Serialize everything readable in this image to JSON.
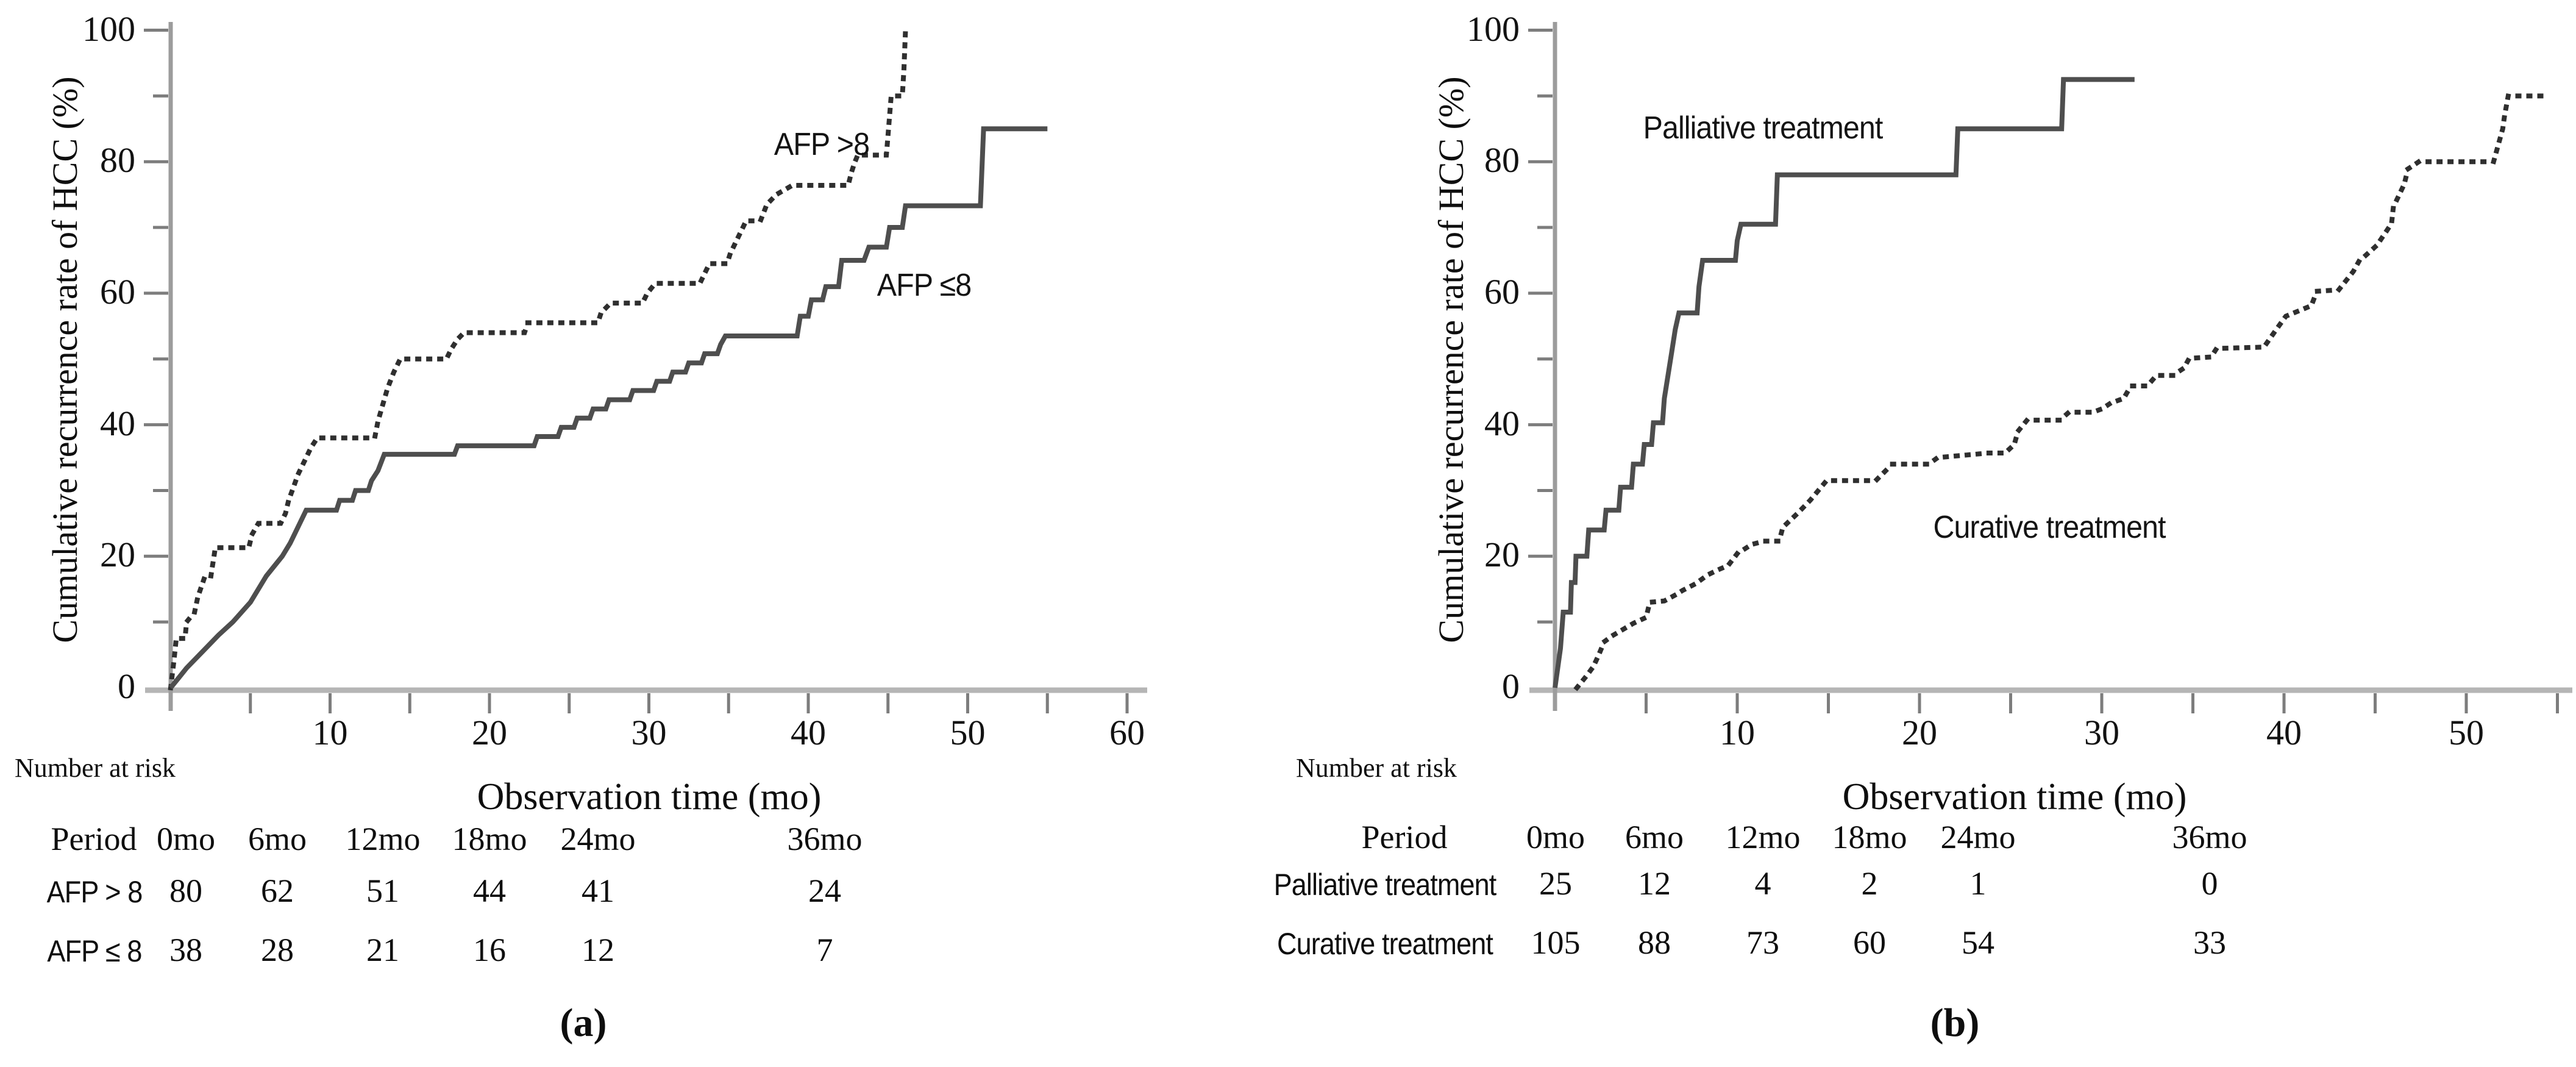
{
  "figure_type": "kaplan-meier cumulative recurrence curves, two panels",
  "chart_data": [
    {
      "type": "line",
      "subtype": "step",
      "panel": "a",
      "caption": "(a)",
      "xlabel": "Observation time (mo)",
      "ylabel": "Cumulative recurrence rate of HCC (%)",
      "xlim": [
        0,
        61
      ],
      "ylim": [
        0,
        100
      ],
      "x_major_ticks": [
        10,
        20,
        30,
        40,
        50,
        60
      ],
      "x_minor_tick_every": 5,
      "y_major_ticks": [
        0,
        20,
        40,
        60,
        80,
        100
      ],
      "y_minor_tick_every": 10,
      "grid": false,
      "legend_position": "labels drawn inside plot",
      "series": [
        {
          "name": "AFP >8",
          "style": "dotted",
          "color": "#2f2f2f",
          "points": [
            [
              0,
              0
            ],
            [
              0.2,
              4
            ],
            [
              0.35,
              7.5
            ],
            [
              0.9,
              7.5
            ],
            [
              1.0,
              10
            ],
            [
              1.5,
              11.5
            ],
            [
              1.7,
              13.8
            ],
            [
              1.9,
              15.2
            ],
            [
              2.1,
              16.6
            ],
            [
              2.5,
              16.6
            ],
            [
              2.6,
              18.2
            ],
            [
              2.7,
              19.7
            ],
            [
              2.8,
              21.3
            ],
            [
              4.9,
              21.3
            ],
            [
              5.1,
              23.3
            ],
            [
              5.5,
              25
            ],
            [
              6.9,
              25
            ],
            [
              7.2,
              26.5
            ],
            [
              7.4,
              28.5
            ],
            [
              7.7,
              30.5
            ],
            [
              8.0,
              32.5
            ],
            [
              8.4,
              34.5
            ],
            [
              8.8,
              36.5
            ],
            [
              9.2,
              38
            ],
            [
              12.8,
              38
            ],
            [
              13.0,
              40.5
            ],
            [
              13.3,
              43
            ],
            [
              13.6,
              45.5
            ],
            [
              14.0,
              48
            ],
            [
              14.4,
              50
            ],
            [
              17.3,
              50
            ],
            [
              17.6,
              51.5
            ],
            [
              18.0,
              53
            ],
            [
              18.4,
              54
            ],
            [
              22.2,
              54
            ],
            [
              22.4,
              55.5
            ],
            [
              26.8,
              55.5
            ],
            [
              27.0,
              57
            ],
            [
              27.6,
              58.5
            ],
            [
              29.6,
              58.5
            ],
            [
              29.9,
              60
            ],
            [
              30.4,
              61.5
            ],
            [
              33.2,
              61.5
            ],
            [
              33.5,
              63
            ],
            [
              33.8,
              64.5
            ],
            [
              34.9,
              64.5
            ],
            [
              35.1,
              66
            ],
            [
              35.5,
              68
            ],
            [
              35.9,
              70
            ],
            [
              36.1,
              71
            ],
            [
              37.0,
              71
            ],
            [
              37.4,
              73.5
            ],
            [
              38.0,
              75
            ],
            [
              39.0,
              76.4
            ],
            [
              42.5,
              76.4
            ],
            [
              42.7,
              78.3
            ],
            [
              42.9,
              79.8
            ],
            [
              43.1,
              81
            ],
            [
              44.9,
              81
            ],
            [
              45.0,
              84
            ],
            [
              45.1,
              87
            ],
            [
              45.2,
              90
            ],
            [
              45.9,
              90
            ],
            [
              46.0,
              94
            ],
            [
              46.05,
              97
            ],
            [
              46.1,
              100
            ]
          ]
        },
        {
          "name": "AFP ≤8",
          "style": "solid",
          "color": "#4e4e4e",
          "points": [
            [
              0,
              0
            ],
            [
              0.5,
              1.5
            ],
            [
              1,
              3
            ],
            [
              2,
              5.5
            ],
            [
              3,
              8
            ],
            [
              3.9,
              10
            ],
            [
              5,
              13
            ],
            [
              6,
              17
            ],
            [
              7,
              20
            ],
            [
              7.5,
              22
            ],
            [
              8,
              24.5
            ],
            [
              8.5,
              27
            ],
            [
              10.4,
              27
            ],
            [
              10.6,
              28.5
            ],
            [
              11.4,
              28.5
            ],
            [
              11.6,
              30
            ],
            [
              12.4,
              30
            ],
            [
              12.6,
              31.5
            ],
            [
              13.0,
              33
            ],
            [
              13.4,
              35.5
            ],
            [
              17.8,
              35.5
            ],
            [
              18.0,
              36.8
            ],
            [
              22.8,
              36.8
            ],
            [
              23.0,
              38.2
            ],
            [
              24.3,
              38.2
            ],
            [
              24.5,
              39.6
            ],
            [
              25.3,
              39.6
            ],
            [
              25.5,
              41
            ],
            [
              26.3,
              41
            ],
            [
              26.5,
              42.4
            ],
            [
              27.3,
              42.4
            ],
            [
              27.5,
              43.8
            ],
            [
              28.8,
              43.8
            ],
            [
              29.0,
              45.2
            ],
            [
              30.3,
              45.2
            ],
            [
              30.5,
              46.6
            ],
            [
              31.3,
              46.6
            ],
            [
              31.5,
              48
            ],
            [
              32.3,
              48
            ],
            [
              32.5,
              49.4
            ],
            [
              33.3,
              49.4
            ],
            [
              33.5,
              50.8
            ],
            [
              34.3,
              50.8
            ],
            [
              34.5,
              52.2
            ],
            [
              34.8,
              53.5
            ],
            [
              39.3,
              53.5
            ],
            [
              39.5,
              56.5
            ],
            [
              40.0,
              56.5
            ],
            [
              40.2,
              59
            ],
            [
              40.9,
              59
            ],
            [
              41.1,
              61
            ],
            [
              41.9,
              61
            ],
            [
              42.1,
              65
            ],
            [
              43.5,
              65
            ],
            [
              43.8,
              67
            ],
            [
              44.9,
              67
            ],
            [
              45.1,
              70
            ],
            [
              45.9,
              70
            ],
            [
              46.1,
              73.3
            ],
            [
              50.8,
              73.3
            ],
            [
              51.0,
              85
            ],
            [
              55,
              85
            ]
          ]
        }
      ],
      "risk_table": {
        "title": "Number at risk",
        "header": [
          "Period",
          "0mo",
          "6mo",
          "12mo",
          "18mo",
          "24mo",
          "36mo"
        ],
        "rows": [
          {
            "label": "AFP > 8",
            "values": [
              "80",
              "62",
              "51",
              "44",
              "41",
              "24"
            ]
          },
          {
            "label": "AFP ≤ 8",
            "values": [
              "38",
              "28",
              "21",
              "16",
              "12",
              "7"
            ]
          }
        ]
      }
    },
    {
      "type": "line",
      "subtype": "step",
      "panel": "b",
      "caption": "(b)",
      "xlabel": "Observation time (mo)",
      "ylabel": "Cumulative recurrence rate of HCC (%)",
      "xlim": [
        0,
        56
      ],
      "ylim": [
        0,
        100
      ],
      "x_major_ticks": [
        10,
        20,
        30,
        40,
        50
      ],
      "x_minor_tick_every": 5,
      "y_major_ticks": [
        0,
        20,
        40,
        60,
        80,
        100
      ],
      "y_minor_tick_every": 10,
      "grid": false,
      "legend_position": "labels drawn inside plot",
      "series": [
        {
          "name": "Palliative treatment",
          "style": "solid",
          "color": "#4e4e4e",
          "points": [
            [
              0,
              0
            ],
            [
              0.3,
              6
            ],
            [
              0.45,
              11.5
            ],
            [
              0.85,
              11.5
            ],
            [
              0.9,
              16
            ],
            [
              1.1,
              16
            ],
            [
              1.15,
              20
            ],
            [
              1.75,
              20
            ],
            [
              1.85,
              24
            ],
            [
              2.7,
              24
            ],
            [
              2.8,
              27
            ],
            [
              3.5,
              27
            ],
            [
              3.6,
              30.5
            ],
            [
              4.2,
              30.5
            ],
            [
              4.3,
              34
            ],
            [
              4.8,
              34
            ],
            [
              4.9,
              37
            ],
            [
              5.3,
              37
            ],
            [
              5.4,
              40.3
            ],
            [
              5.9,
              40.3
            ],
            [
              6.0,
              44
            ],
            [
              6.2,
              47.5
            ],
            [
              6.4,
              51
            ],
            [
              6.6,
              54.5
            ],
            [
              6.8,
              57
            ],
            [
              7.8,
              57
            ],
            [
              7.9,
              61
            ],
            [
              8.1,
              65
            ],
            [
              9.9,
              65
            ],
            [
              10.0,
              68
            ],
            [
              10.2,
              70.5
            ],
            [
              12.1,
              70.5
            ],
            [
              12.2,
              78
            ],
            [
              22.0,
              78
            ],
            [
              22.1,
              85
            ],
            [
              27.8,
              85
            ],
            [
              27.9,
              92.5
            ],
            [
              31.8,
              92.5
            ]
          ]
        },
        {
          "name": "Curative treatment",
          "style": "dotted",
          "color": "#2f2f2f",
          "points": [
            [
              1.2,
              0
            ],
            [
              1.7,
              1.7
            ],
            [
              2.1,
              3.2
            ],
            [
              2.4,
              5
            ],
            [
              2.7,
              7
            ],
            [
              3.2,
              8
            ],
            [
              4.3,
              9.8
            ],
            [
              5.0,
              10.7
            ],
            [
              5.2,
              13
            ],
            [
              6.0,
              13.2
            ],
            [
              6.6,
              14.1
            ],
            [
              7.0,
              14.8
            ],
            [
              7.7,
              15.8
            ],
            [
              8.4,
              17.2
            ],
            [
              9.0,
              18
            ],
            [
              9.5,
              18.6
            ],
            [
              10.0,
              20.4
            ],
            [
              10.8,
              21.8
            ],
            [
              11.5,
              22.3
            ],
            [
              12.3,
              22.3
            ],
            [
              12.5,
              24.4
            ],
            [
              13.3,
              26.5
            ],
            [
              14.0,
              28.5
            ],
            [
              14.9,
              31.5
            ],
            [
              17.6,
              31.5
            ],
            [
              18.5,
              34
            ],
            [
              20.5,
              34
            ],
            [
              21.0,
              35
            ],
            [
              23.8,
              35.7
            ],
            [
              24.7,
              35.7
            ],
            [
              25.2,
              37
            ],
            [
              25.4,
              39
            ],
            [
              25.9,
              40.7
            ],
            [
              27.7,
              40.7
            ],
            [
              28.2,
              41.9
            ],
            [
              29.5,
              41.9
            ],
            [
              30.0,
              42.4
            ],
            [
              30.5,
              43.3
            ],
            [
              31.2,
              44
            ],
            [
              31.6,
              45.9
            ],
            [
              32.5,
              45.9
            ],
            [
              33.0,
              47.5
            ],
            [
              33.9,
              47.5
            ],
            [
              34.5,
              48.6
            ],
            [
              34.8,
              50.1
            ],
            [
              36.0,
              50.3
            ],
            [
              36.3,
              51.6
            ],
            [
              38.9,
              51.8
            ],
            [
              39.5,
              54.2
            ],
            [
              40.1,
              56.5
            ],
            [
              41.5,
              58.1
            ],
            [
              41.8,
              60.3
            ],
            [
              43.0,
              60.5
            ],
            [
              43.8,
              63.3
            ],
            [
              44.1,
              64.8
            ],
            [
              45.1,
              67.3
            ],
            [
              45.9,
              70.6
            ],
            [
              46.0,
              73.1
            ],
            [
              46.6,
              76.6
            ],
            [
              46.8,
              78.9
            ],
            [
              47.4,
              80
            ],
            [
              51.5,
              80
            ],
            [
              51.8,
              83
            ],
            [
              52.0,
              85
            ],
            [
              52.1,
              87
            ],
            [
              52.3,
              90
            ],
            [
              54.5,
              90
            ]
          ]
        }
      ],
      "risk_table": {
        "title": "Number at risk",
        "header": [
          "Period",
          "0mo",
          "6mo",
          "12mo",
          "18mo",
          "24mo",
          "36mo"
        ],
        "rows": [
          {
            "label": "Palliative treatment",
            "values": [
              "25",
              "12",
              "4",
              "2",
              "1",
              "0"
            ]
          },
          {
            "label": "Curative treatment",
            "values": [
              "105",
              "88",
              "73",
              "60",
              "54",
              "33"
            ]
          }
        ]
      }
    }
  ],
  "colors": {
    "solid_curve": "#4e4e4e",
    "dotted_curve": "#2f2f2f",
    "axis_baseline": "#b5b5b5",
    "axis_vertical": "#9c9c9c",
    "tick_mark": "#7d7d7d",
    "text": "#0e0e0e"
  }
}
